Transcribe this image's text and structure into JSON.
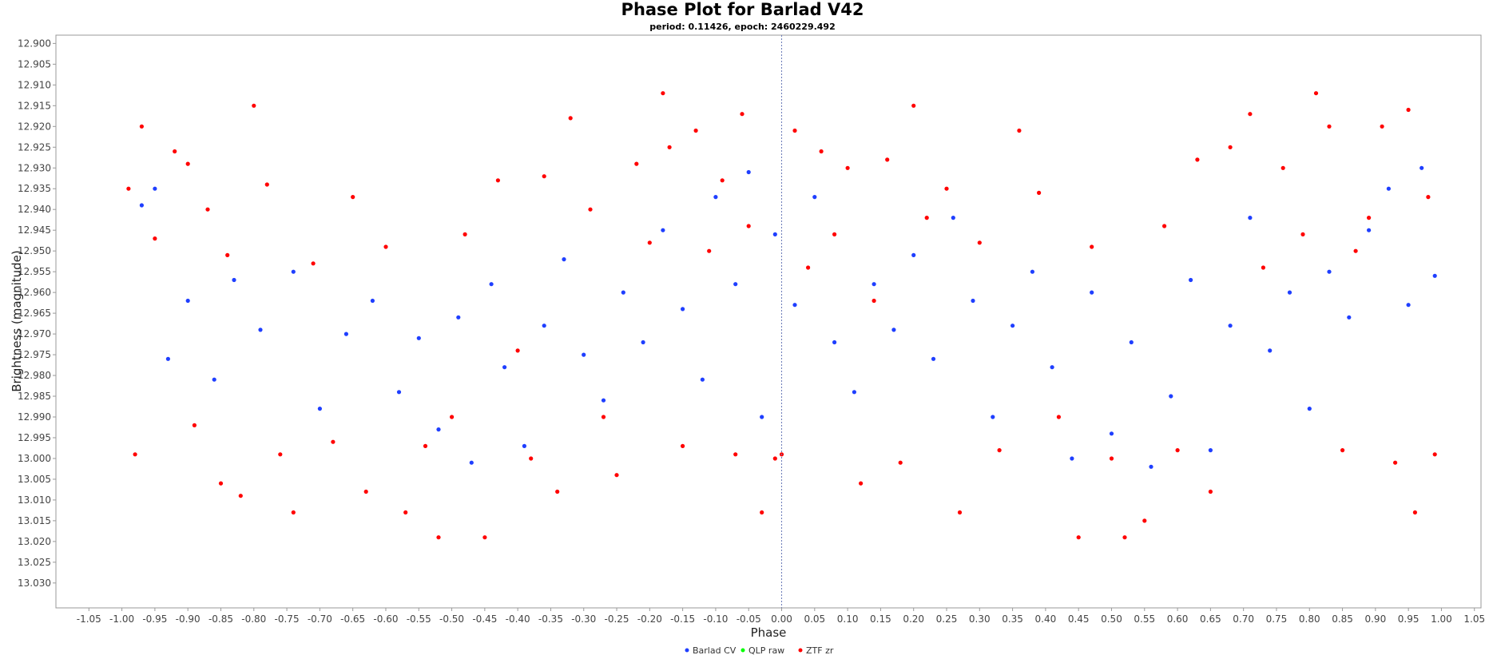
{
  "chart_data": {
    "type": "scatter",
    "title": "Phase Plot for Barlad V42",
    "subtitle": "period: 0.11426, epoch: 2460229.492",
    "xlabel": "Phase",
    "ylabel": "Brightness (magnitude)",
    "xlim": [
      -1.1,
      1.06
    ],
    "ylim": [
      12.898,
      13.036
    ],
    "y_inverted": true,
    "x_ticks": [
      "-1.05",
      "-1.00",
      "-0.95",
      "-0.90",
      "-0.85",
      "-0.80",
      "-0.75",
      "-0.70",
      "-0.65",
      "-0.60",
      "-0.55",
      "-0.50",
      "-0.45",
      "-0.40",
      "-0.35",
      "-0.30",
      "-0.25",
      "-0.20",
      "-0.15",
      "-0.10",
      "-0.05",
      "0.00",
      "0.05",
      "0.10",
      "0.15",
      "0.20",
      "0.25",
      "0.30",
      "0.35",
      "0.40",
      "0.45",
      "0.50",
      "0.55",
      "0.60",
      "0.65",
      "0.70",
      "0.75",
      "0.80",
      "0.85",
      "0.90",
      "0.95",
      "1.00",
      "1.05"
    ],
    "y_ticks": [
      "12.900",
      "12.905",
      "12.910",
      "12.915",
      "12.920",
      "12.925",
      "12.930",
      "12.935",
      "12.940",
      "12.945",
      "12.950",
      "12.955",
      "12.960",
      "12.965",
      "12.970",
      "12.975",
      "12.980",
      "12.985",
      "12.990",
      "12.995",
      "13.000",
      "13.005",
      "13.010",
      "13.015",
      "13.020",
      "13.025",
      "13.030"
    ],
    "grid": false,
    "reference_line_x": 0.0,
    "legend_position": "bottom-center",
    "series": [
      {
        "name": "Barlad CV",
        "color": "#1f3fff",
        "x": [
          -0.97,
          -0.95,
          -0.93,
          -0.9,
          -0.86,
          -0.83,
          -0.79,
          -0.74,
          -0.7,
          -0.66,
          -0.62,
          -0.58,
          -0.55,
          -0.52,
          -0.49,
          -0.47,
          -0.44,
          -0.42,
          -0.39,
          -0.36,
          -0.33,
          -0.3,
          -0.27,
          -0.24,
          -0.21,
          -0.18,
          -0.15,
          -0.12,
          -0.1,
          -0.07,
          -0.05,
          -0.03,
          -0.01,
          0.02,
          0.05,
          0.08,
          0.11,
          0.14,
          0.17,
          0.2,
          0.23,
          0.26,
          0.29,
          0.32,
          0.35,
          0.38,
          0.41,
          0.44,
          0.47,
          0.5,
          0.53,
          0.56,
          0.59,
          0.62,
          0.65,
          0.68,
          0.71,
          0.74,
          0.77,
          0.8,
          0.83,
          0.86,
          0.89,
          0.92,
          0.95,
          0.97,
          0.99
        ],
        "y": [
          12.939,
          12.935,
          12.976,
          12.962,
          12.981,
          12.957,
          12.969,
          12.955,
          12.988,
          12.97,
          12.962,
          12.984,
          12.971,
          12.993,
          12.966,
          13.001,
          12.958,
          12.978,
          12.997,
          12.968,
          12.952,
          12.975,
          12.986,
          12.96,
          12.972,
          12.945,
          12.964,
          12.981,
          12.937,
          12.958,
          12.931,
          12.99,
          12.946,
          12.963,
          12.937,
          12.972,
          12.984,
          12.958,
          12.969,
          12.951,
          12.976,
          12.942,
          12.962,
          12.99,
          12.968,
          12.955,
          12.978,
          13.0,
          12.96,
          12.994,
          12.972,
          13.002,
          12.985,
          12.957,
          12.998,
          12.968,
          12.942,
          12.974,
          12.96,
          12.988,
          12.955,
          12.966,
          12.945,
          12.935,
          12.963,
          12.93,
          12.956
        ]
      },
      {
        "name": "QLP raw",
        "color": "#00ff00",
        "x": [],
        "y": []
      },
      {
        "name": "ZTF zr",
        "color": "#ff0000",
        "x": [
          -0.99,
          -0.98,
          -0.97,
          -0.95,
          -0.92,
          -0.9,
          -0.89,
          -0.87,
          -0.85,
          -0.84,
          -0.82,
          -0.8,
          -0.78,
          -0.76,
          -0.74,
          -0.71,
          -0.68,
          -0.65,
          -0.63,
          -0.6,
          -0.57,
          -0.54,
          -0.52,
          -0.5,
          -0.48,
          -0.45,
          -0.43,
          -0.4,
          -0.38,
          -0.36,
          -0.34,
          -0.32,
          -0.29,
          -0.27,
          -0.25,
          -0.22,
          -0.2,
          -0.18,
          -0.17,
          -0.15,
          -0.13,
          -0.11,
          -0.09,
          -0.07,
          -0.06,
          -0.05,
          -0.03,
          -0.01,
          0.0,
          0.02,
          0.04,
          0.06,
          0.08,
          0.1,
          0.12,
          0.14,
          0.16,
          0.18,
          0.2,
          0.22,
          0.25,
          0.27,
          0.3,
          0.33,
          0.36,
          0.39,
          0.42,
          0.45,
          0.47,
          0.5,
          0.52,
          0.55,
          0.58,
          0.6,
          0.63,
          0.65,
          0.68,
          0.71,
          0.73,
          0.76,
          0.79,
          0.81,
          0.83,
          0.85,
          0.87,
          0.89,
          0.91,
          0.93,
          0.95,
          0.96,
          0.98,
          0.99
        ],
        "y": [
          12.935,
          12.999,
          12.92,
          12.947,
          12.926,
          12.929,
          12.992,
          12.94,
          13.006,
          12.951,
          13.009,
          12.915,
          12.934,
          12.999,
          13.013,
          12.953,
          12.996,
          12.937,
          13.008,
          12.949,
          13.013,
          12.997,
          13.019,
          12.99,
          12.946,
          13.019,
          12.933,
          12.974,
          13.0,
          12.932,
          13.008,
          12.918,
          12.94,
          12.99,
          13.004,
          12.929,
          12.948,
          12.912,
          12.925,
          12.997,
          12.921,
          12.95,
          12.933,
          12.999,
          12.917,
          12.944,
          13.013,
          13.0,
          12.999,
          12.921,
          12.954,
          12.926,
          12.946,
          12.93,
          13.006,
          12.962,
          12.928,
          13.001,
          12.915,
          12.942,
          12.935,
          13.013,
          12.948,
          12.998,
          12.921,
          12.936,
          12.99,
          13.019,
          12.949,
          13.0,
          13.019,
          13.015,
          12.944,
          12.998,
          12.928,
          13.008,
          12.925,
          12.917,
          12.954,
          12.93,
          12.946,
          12.912,
          12.92,
          12.998,
          12.95,
          12.942,
          12.92,
          13.001,
          12.916,
          13.013,
          12.937,
          12.999
        ]
      }
    ]
  }
}
